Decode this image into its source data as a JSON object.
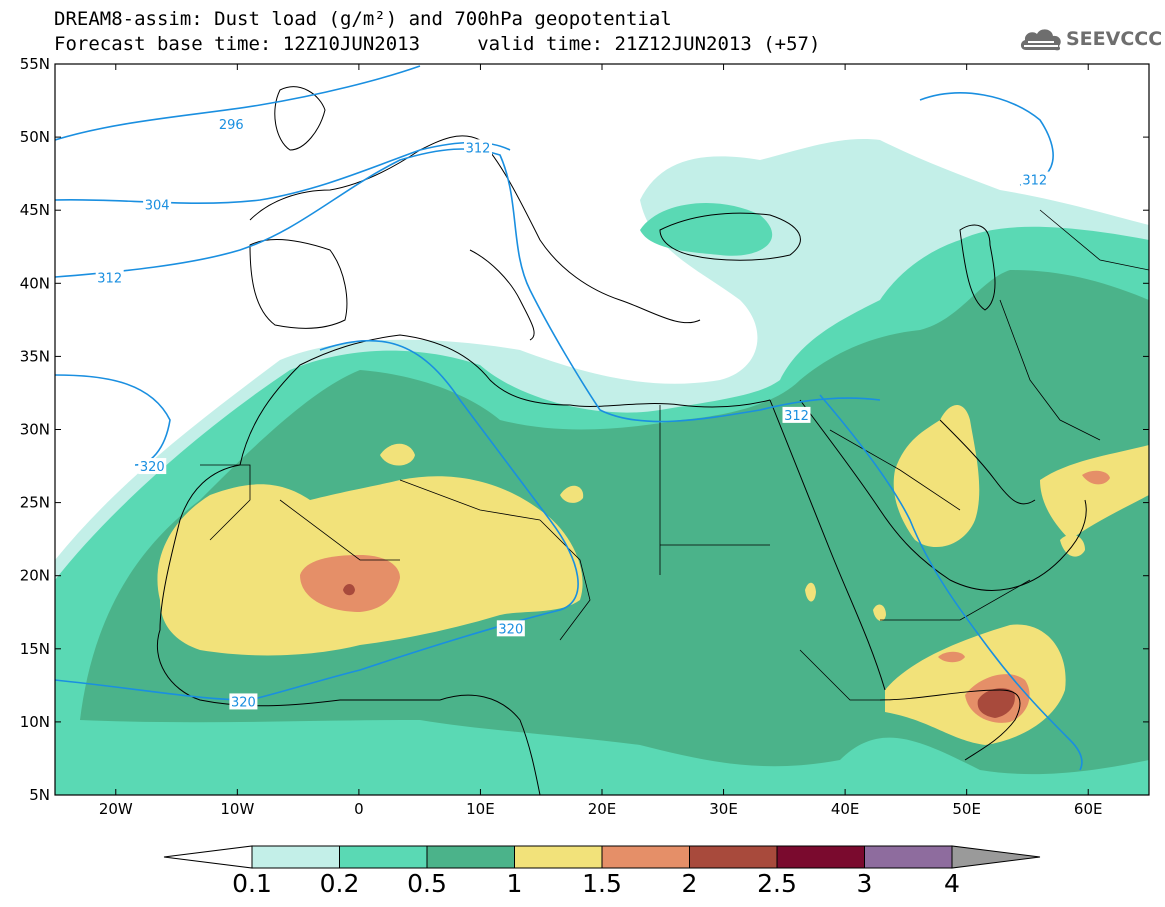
{
  "header": {
    "title_line1": "DREAM8-assim: Dust load (g/m²) and 700hPa geopotential",
    "title_line2": "Forecast base time: 12Z10JUN2013     valid time: 21Z12JUN2013 (+57)"
  },
  "logo": {
    "text": "SEEVCCC",
    "icon": "cloud-icon",
    "color": "#6e6e6e"
  },
  "map": {
    "lon_range": [
      -25,
      65
    ],
    "lat_range": [
      5,
      55
    ],
    "lat_ticks": [
      {
        "value": 55,
        "label": "55N"
      },
      {
        "value": 50,
        "label": "50N"
      },
      {
        "value": 45,
        "label": "45N"
      },
      {
        "value": 40,
        "label": "40N"
      },
      {
        "value": 35,
        "label": "35N"
      },
      {
        "value": 30,
        "label": "30N"
      },
      {
        "value": 25,
        "label": "25N"
      },
      {
        "value": 20,
        "label": "20N"
      },
      {
        "value": 15,
        "label": "15N"
      },
      {
        "value": 10,
        "label": "10N"
      },
      {
        "value": 5,
        "label": "5N"
      }
    ],
    "lon_ticks": [
      {
        "value": -20,
        "label": "20W"
      },
      {
        "value": -10,
        "label": "10W"
      },
      {
        "value": 0,
        "label": "0"
      },
      {
        "value": 10,
        "label": "10E"
      },
      {
        "value": 20,
        "label": "20E"
      },
      {
        "value": 30,
        "label": "30E"
      },
      {
        "value": 40,
        "label": "40E"
      },
      {
        "value": 50,
        "label": "50E"
      },
      {
        "value": 60,
        "label": "60E"
      }
    ],
    "contour_labels": [
      {
        "text": "296",
        "lon": -10.5,
        "lat": 50.9
      },
      {
        "text": "304",
        "lon": -16.6,
        "lat": 45.4
      },
      {
        "text": "312",
        "lon": -20.5,
        "lat": 40.4
      },
      {
        "text": "312",
        "lon": 9.8,
        "lat": 49.3
      },
      {
        "text": "312",
        "lon": 55.6,
        "lat": 47.1
      },
      {
        "text": "312",
        "lon": 36.0,
        "lat": 31.0
      },
      {
        "text": "320",
        "lon": -17.0,
        "lat": 27.5
      },
      {
        "text": "320",
        "lon": 12.5,
        "lat": 16.4
      },
      {
        "text": "320",
        "lon": -9.5,
        "lat": 11.4
      }
    ],
    "contour_color": "#1a8fe0",
    "dust_colors": {
      "c01": "#c3efe8",
      "c02": "#5ad9b4",
      "c05": "#4bb38a",
      "c1": "#f2e27a",
      "c15": "#e58f68",
      "c2": "#a84a3c"
    }
  },
  "colorbar": {
    "labels": [
      "0.1",
      "0.2",
      "0.5",
      "1",
      "1.5",
      "2",
      "2.5",
      "3",
      "4"
    ],
    "colors": [
      "#c3efe8",
      "#5ad9b4",
      "#4bb38a",
      "#f2e27a",
      "#e58f68",
      "#a84a3c",
      "#7a0a2e",
      "#8e6c9e"
    ],
    "under_color": "#ffffff",
    "over_color": "#9a9a9a"
  }
}
